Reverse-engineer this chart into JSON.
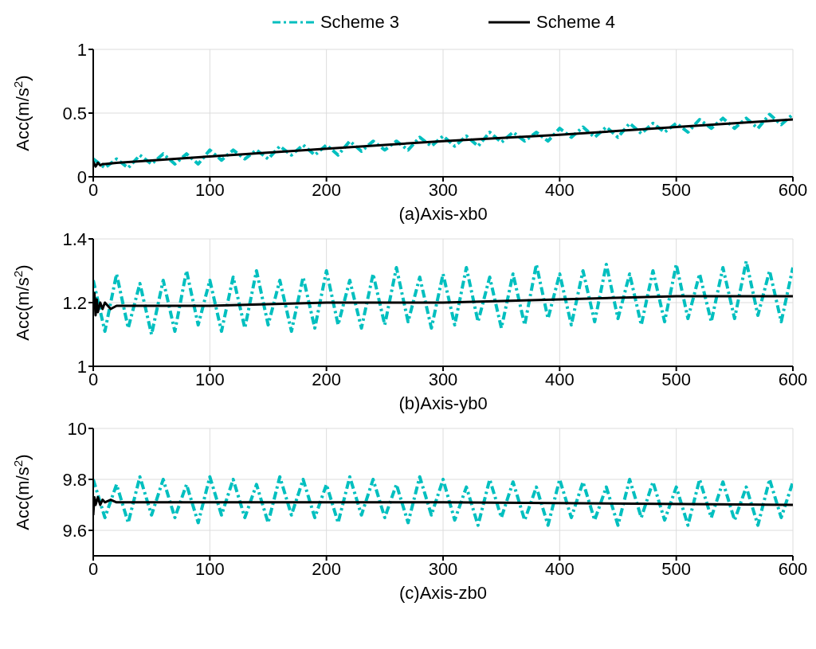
{
  "chart_data": [
    {
      "type": "line",
      "xlabel": "(a)Axis-xb0",
      "ylabel": "Acc(m/s$^{2}$)",
      "xlim": [
        0,
        600
      ],
      "xticks": [
        0,
        100,
        200,
        300,
        400,
        500,
        600
      ],
      "ylim": [
        0,
        1
      ],
      "yticks": [
        0,
        0.5,
        1
      ],
      "grid": true,
      "legend": "top",
      "series": [
        {
          "name": "Scheme 3",
          "color": "#00bfbf",
          "line_style": "dashed",
          "x": [
            0,
            10,
            20,
            30,
            40,
            50,
            60,
            70,
            80,
            90,
            100,
            110,
            120,
            130,
            140,
            150,
            160,
            170,
            180,
            190,
            200,
            210,
            220,
            230,
            240,
            250,
            260,
            270,
            280,
            290,
            300,
            310,
            320,
            330,
            340,
            350,
            360,
            370,
            380,
            390,
            400,
            410,
            420,
            430,
            440,
            450,
            460,
            470,
            480,
            490,
            500,
            510,
            520,
            530,
            540,
            550,
            560,
            570,
            580,
            590,
            600
          ],
          "values": [
            0.14,
            0.07,
            0.14,
            0.07,
            0.17,
            0.1,
            0.18,
            0.1,
            0.18,
            0.1,
            0.21,
            0.13,
            0.21,
            0.14,
            0.21,
            0.14,
            0.24,
            0.17,
            0.25,
            0.17,
            0.25,
            0.17,
            0.28,
            0.2,
            0.28,
            0.21,
            0.28,
            0.21,
            0.31,
            0.24,
            0.32,
            0.24,
            0.32,
            0.24,
            0.35,
            0.27,
            0.35,
            0.28,
            0.35,
            0.28,
            0.38,
            0.31,
            0.39,
            0.31,
            0.39,
            0.31,
            0.42,
            0.34,
            0.42,
            0.35,
            0.42,
            0.35,
            0.45,
            0.38,
            0.46,
            0.38,
            0.46,
            0.38,
            0.49,
            0.41,
            0.49
          ]
        },
        {
          "name": "Scheme 4",
          "color": "#000000",
          "line_style": "solid",
          "x": [
            0,
            2,
            4,
            6,
            8,
            10,
            20,
            100,
            200,
            300,
            400,
            500,
            600
          ],
          "values": [
            0.12,
            0.08,
            0.11,
            0.09,
            0.1,
            0.1,
            0.11,
            0.16,
            0.22,
            0.28,
            0.33,
            0.39,
            0.45
          ]
        }
      ]
    },
    {
      "type": "line",
      "xlabel": "(b)Axis-yb0",
      "ylabel": "Acc(m/s$^{2}$)",
      "xlim": [
        0,
        600
      ],
      "xticks": [
        0,
        100,
        200,
        300,
        400,
        500,
        600
      ],
      "ylim": [
        1,
        1.4
      ],
      "yticks": [
        1,
        1.2,
        1.4
      ],
      "grid": true,
      "series": [
        {
          "color": "#00bfbf",
          "line_style": "dashed",
          "x": [
            0,
            10,
            20,
            30,
            40,
            50,
            60,
            70,
            80,
            90,
            100,
            110,
            120,
            130,
            140,
            150,
            160,
            170,
            180,
            190,
            200,
            210,
            220,
            230,
            240,
            250,
            260,
            270,
            280,
            290,
            300,
            310,
            320,
            330,
            340,
            350,
            360,
            370,
            380,
            390,
            400,
            410,
            420,
            430,
            440,
            450,
            460,
            470,
            480,
            490,
            500,
            510,
            520,
            530,
            540,
            550,
            560,
            570,
            580,
            590,
            600
          ],
          "values": [
            1.27,
            1.11,
            1.29,
            1.12,
            1.26,
            1.1,
            1.27,
            1.11,
            1.3,
            1.13,
            1.27,
            1.11,
            1.28,
            1.12,
            1.3,
            1.13,
            1.27,
            1.11,
            1.28,
            1.12,
            1.3,
            1.13,
            1.27,
            1.12,
            1.29,
            1.13,
            1.31,
            1.14,
            1.28,
            1.12,
            1.29,
            1.13,
            1.31,
            1.14,
            1.28,
            1.12,
            1.29,
            1.13,
            1.32,
            1.15,
            1.29,
            1.13,
            1.3,
            1.14,
            1.32,
            1.15,
            1.29,
            1.13,
            1.3,
            1.14,
            1.32,
            1.15,
            1.29,
            1.14,
            1.31,
            1.15,
            1.33,
            1.16,
            1.3,
            1.14,
            1.31
          ]
        },
        {
          "color": "#000000",
          "line_style": "solid",
          "x": [
            0,
            1,
            2,
            3,
            4,
            6,
            8,
            10,
            15,
            20,
            30,
            100,
            200,
            300,
            400,
            500,
            600
          ],
          "values": [
            1.2,
            1.23,
            1.16,
            1.21,
            1.17,
            1.2,
            1.18,
            1.2,
            1.18,
            1.19,
            1.19,
            1.19,
            1.2,
            1.2,
            1.21,
            1.22,
            1.22
          ]
        }
      ]
    },
    {
      "type": "line",
      "xlabel": "(c)Axis-zb0",
      "ylabel": "Acc(m/s$^{2}$)",
      "xlim": [
        0,
        600
      ],
      "xticks": [
        0,
        100,
        200,
        300,
        400,
        500,
        600
      ],
      "ylim": [
        9.5,
        10
      ],
      "yticks": [
        9.6,
        9.8,
        10
      ],
      "grid": true,
      "series": [
        {
          "color": "#00bfbf",
          "line_style": "dashed",
          "x": [
            0,
            10,
            20,
            30,
            40,
            50,
            60,
            70,
            80,
            90,
            100,
            110,
            120,
            130,
            140,
            150,
            160,
            170,
            180,
            190,
            200,
            210,
            220,
            230,
            240,
            250,
            260,
            270,
            280,
            290,
            300,
            310,
            320,
            330,
            340,
            350,
            360,
            370,
            380,
            390,
            400,
            410,
            420,
            430,
            440,
            450,
            460,
            470,
            480,
            490,
            500,
            510,
            520,
            530,
            540,
            550,
            560,
            570,
            580,
            590,
            600
          ],
          "values": [
            9.8,
            9.65,
            9.78,
            9.63,
            9.81,
            9.66,
            9.8,
            9.65,
            9.78,
            9.63,
            9.81,
            9.66,
            9.8,
            9.65,
            9.78,
            9.63,
            9.81,
            9.66,
            9.8,
            9.65,
            9.78,
            9.63,
            9.81,
            9.66,
            9.8,
            9.65,
            9.78,
            9.63,
            9.81,
            9.66,
            9.8,
            9.64,
            9.77,
            9.62,
            9.8,
            9.65,
            9.79,
            9.64,
            9.77,
            9.62,
            9.8,
            9.65,
            9.79,
            9.64,
            9.77,
            9.62,
            9.8,
            9.65,
            9.79,
            9.64,
            9.77,
            9.62,
            9.8,
            9.65,
            9.79,
            9.64,
            9.77,
            9.62,
            9.8,
            9.65,
            9.79
          ]
        },
        {
          "color": "#000000",
          "line_style": "solid",
          "x": [
            0,
            1,
            2,
            4,
            6,
            8,
            10,
            15,
            20,
            30,
            100,
            300,
            600
          ],
          "values": [
            9.66,
            9.73,
            9.7,
            9.73,
            9.7,
            9.72,
            9.71,
            9.72,
            9.71,
            9.71,
            9.71,
            9.71,
            9.7
          ]
        }
      ]
    }
  ]
}
